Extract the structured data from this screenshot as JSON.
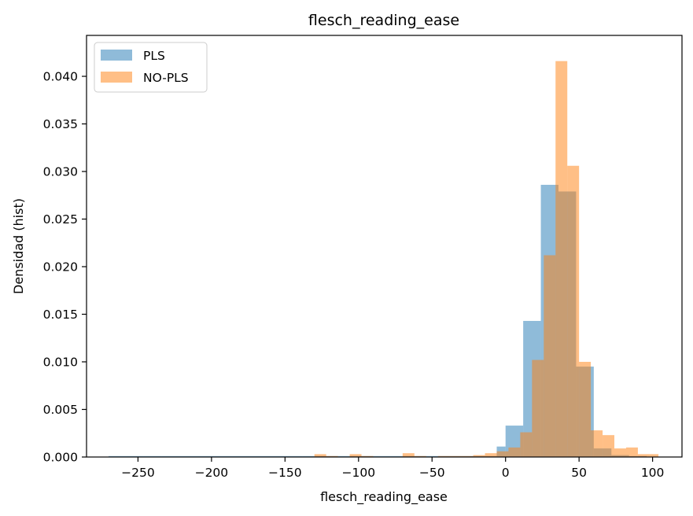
{
  "chart_data": {
    "type": "bar",
    "subtype": "overlaid-histogram",
    "title": "flesch_reading_ease",
    "xlabel": "flesch_reading_ease",
    "ylabel": "Densidad (hist)",
    "xlim": [
      -285,
      120
    ],
    "ylim": [
      0,
      0.0443
    ],
    "xticks": [
      -250,
      -200,
      -150,
      -100,
      -50,
      0,
      50,
      100
    ],
    "xtick_labels": [
      "−250",
      "−200",
      "−150",
      "−100",
      "−50",
      "0",
      "50",
      "100"
    ],
    "yticks": [
      0,
      0.005,
      0.01,
      0.015,
      0.02,
      0.025,
      0.03,
      0.035,
      0.04
    ],
    "ytick_labels": [
      "0.000",
      "0.005",
      "0.010",
      "0.015",
      "0.020",
      "0.025",
      "0.030",
      "0.035",
      "0.040"
    ],
    "grid": false,
    "legend_position": "top-left",
    "series": [
      {
        "name": "PLS",
        "color": "#1f77b4",
        "alpha": 0.5,
        "bins": [
          [
            -270.0,
            -258.0,
            0.0001
          ],
          [
            -258.0,
            -246.0,
            0.0001
          ],
          [
            -246.0,
            -234.0,
            0.0001
          ],
          [
            -234.0,
            -222.0,
            0.0001
          ],
          [
            -222.0,
            -210.0,
            0.0001
          ],
          [
            -210.0,
            -198.0,
            0.0001
          ],
          [
            -198.0,
            -186.0,
            0.0001
          ],
          [
            -186.0,
            -174.0,
            0.0001
          ],
          [
            -174.0,
            -162.0,
            0.0001
          ],
          [
            -162.0,
            -150.0,
            0.0001
          ],
          [
            -150.0,
            -138.0,
            0.0001
          ],
          [
            -138.0,
            -126.0,
            0.0001
          ],
          [
            -126.0,
            -114.0,
            0.0001
          ],
          [
            -114.0,
            -102.0,
            0.0001
          ],
          [
            -102.0,
            -90.0,
            0.0001
          ],
          [
            -90.0,
            -78.0,
            0.0001
          ],
          [
            -78.0,
            -66.0,
            0.0001
          ],
          [
            -66.0,
            -54.0,
            0.0001
          ],
          [
            -54.0,
            -42.0,
            0.0001
          ],
          [
            -42.0,
            -30.0,
            0.0001
          ],
          [
            -30.0,
            -18.0,
            0.0001
          ],
          [
            -18.0,
            -6.0,
            0.0001
          ],
          [
            -6.0,
            0.0,
            0.0011
          ],
          [
            0.0,
            12.0,
            0.0033
          ],
          [
            12.0,
            24.0,
            0.0143
          ],
          [
            24.0,
            36.0,
            0.0286
          ],
          [
            36.0,
            48.0,
            0.0279
          ],
          [
            48.0,
            60.0,
            0.0095
          ],
          [
            60.0,
            72.0,
            0.0009
          ],
          [
            72.0,
            84.0,
            0.0002
          ],
          [
            84.0,
            96.0,
            0.0001
          ]
        ]
      },
      {
        "name": "NO-PLS",
        "color": "#ff7f0e",
        "alpha": 0.5,
        "bins": [
          [
            -130.0,
            -122.0,
            0.0003
          ],
          [
            -122.0,
            -114.0,
            0.0001
          ],
          [
            -106.0,
            -98.0,
            0.0003
          ],
          [
            -98.0,
            -90.0,
            0.0001
          ],
          [
            -70.0,
            -62.0,
            0.0004
          ],
          [
            -62.0,
            -54.0,
            0.0001
          ],
          [
            -46.0,
            -38.0,
            0.0001
          ],
          [
            -38.0,
            -30.0,
            0.0001
          ],
          [
            -30.0,
            -22.0,
            0.0001
          ],
          [
            -22.0,
            -14.0,
            0.0002
          ],
          [
            -14.0,
            -6.0,
            0.0004
          ],
          [
            -6.0,
            2.0,
            0.0006
          ],
          [
            2.0,
            10.0,
            0.001
          ],
          [
            10.0,
            18.0,
            0.0026
          ],
          [
            18.0,
            26.0,
            0.0102
          ],
          [
            26.0,
            34.0,
            0.0212
          ],
          [
            34.0,
            42.0,
            0.0416
          ],
          [
            42.0,
            50.0,
            0.0306
          ],
          [
            50.0,
            58.0,
            0.01
          ],
          [
            58.0,
            66.0,
            0.0028
          ],
          [
            66.0,
            74.0,
            0.0023
          ],
          [
            74.0,
            82.0,
            0.0009
          ],
          [
            82.0,
            90.0,
            0.001
          ],
          [
            90.0,
            98.0,
            0.0003
          ],
          [
            98.0,
            104.0,
            0.0003
          ]
        ]
      }
    ]
  }
}
